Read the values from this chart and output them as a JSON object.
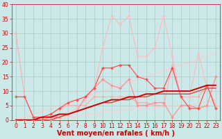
{
  "xlabel": "Vent moyen/en rafales ( km/h )",
  "background_color": "#cce8e8",
  "grid_color": "#aacccc",
  "xlim": [
    -0.5,
    23.5
  ],
  "ylim": [
    0,
    40
  ],
  "yticks": [
    0,
    5,
    10,
    15,
    20,
    25,
    30,
    35,
    40
  ],
  "xticks": [
    0,
    1,
    2,
    3,
    4,
    5,
    6,
    7,
    8,
    9,
    10,
    11,
    12,
    13,
    14,
    15,
    16,
    17,
    18,
    19,
    20,
    21,
    22,
    23
  ],
  "series": [
    {
      "x": [
        0,
        1,
        2,
        3,
        4,
        5,
        6,
        7,
        8,
        9,
        10,
        11,
        12,
        13,
        14,
        15,
        16,
        17,
        18,
        19,
        20,
        21,
        22,
        23
      ],
      "y": [
        30,
        8,
        1,
        1,
        2,
        4,
        5,
        5,
        5,
        8,
        8,
        8,
        8,
        8,
        6,
        6,
        5,
        5,
        19,
        8,
        8,
        8,
        12,
        5
      ],
      "color": "#ffaaaa",
      "linewidth": 0.8,
      "marker": "+",
      "markersize": 3,
      "zorder": 3
    },
    {
      "x": [
        0,
        1,
        2,
        3,
        4,
        5,
        6,
        7,
        8,
        9,
        10,
        11,
        12,
        13,
        14,
        15,
        16,
        17,
        18,
        19,
        20,
        21,
        22,
        23
      ],
      "y": [
        0,
        0,
        0,
        0,
        0,
        1,
        2,
        4,
        7,
        11,
        25,
        36,
        33,
        36,
        22,
        22,
        25,
        36,
        22,
        8,
        8,
        23,
        11,
        12
      ],
      "color": "#ffbbbb",
      "linewidth": 0.8,
      "marker": "+",
      "markersize": 3,
      "zorder": 3
    },
    {
      "x": [
        0,
        1,
        2,
        3,
        4,
        5,
        6,
        7,
        8,
        9,
        10,
        11,
        12,
        13,
        14,
        15,
        16,
        17,
        18,
        19,
        20,
        21,
        22,
        23
      ],
      "y": [
        8,
        8,
        1,
        1,
        2,
        4,
        6,
        7,
        8,
        11,
        18,
        18,
        19,
        19,
        15,
        14,
        11,
        11,
        18,
        8,
        4,
        4,
        12,
        4
      ],
      "color": "#ff4444",
      "linewidth": 0.8,
      "marker": "+",
      "markersize": 3,
      "zorder": 4
    },
    {
      "x": [
        0,
        1,
        2,
        3,
        4,
        5,
        6,
        7,
        8,
        9,
        10,
        11,
        12,
        13,
        14,
        15,
        16,
        17,
        18,
        19,
        20,
        21,
        22,
        23
      ],
      "y": [
        0,
        0,
        0,
        0,
        1,
        1,
        2,
        3,
        8,
        11,
        14,
        12,
        11,
        14,
        5,
        5,
        6,
        6,
        1,
        5,
        5,
        4,
        5,
        15
      ],
      "color": "#ff8888",
      "linewidth": 0.8,
      "marker": "+",
      "markersize": 3,
      "zorder": 3
    },
    {
      "x": [
        0,
        23
      ],
      "y": [
        0,
        23
      ],
      "color": "#ffcccc",
      "linewidth": 0.8,
      "marker": null,
      "markersize": 0,
      "zorder": 1
    },
    {
      "x": [
        0,
        1,
        2,
        3,
        4,
        5,
        6,
        7,
        8,
        9,
        10,
        11,
        12,
        13,
        14,
        15,
        16,
        17,
        18,
        19,
        20,
        21,
        22,
        23
      ],
      "y": [
        0,
        0,
        0,
        1,
        1,
        2,
        2,
        3,
        4,
        5,
        6,
        7,
        7,
        8,
        8,
        9,
        9,
        10,
        10,
        10,
        10,
        11,
        12,
        12
      ],
      "color": "#cc0000",
      "linewidth": 1.4,
      "marker": null,
      "markersize": 0,
      "zorder": 5
    },
    {
      "x": [
        0,
        1,
        2,
        3,
        4,
        5,
        6,
        7,
        8,
        9,
        10,
        11,
        12,
        13,
        14,
        15,
        16,
        17,
        18,
        19,
        20,
        21,
        22,
        23
      ],
      "y": [
        0,
        0,
        0,
        0,
        0,
        1,
        2,
        3,
        4,
        5,
        6,
        6,
        7,
        7,
        8,
        8,
        9,
        9,
        9,
        9,
        9,
        10,
        11,
        11
      ],
      "color": "#dd4444",
      "linewidth": 1.0,
      "marker": null,
      "markersize": 0,
      "zorder": 4
    },
    {
      "x": [
        0,
        1,
        2,
        3,
        4,
        5,
        6,
        7,
        8,
        9,
        10,
        11,
        12,
        13,
        14,
        15,
        16,
        17,
        18,
        19,
        20,
        21,
        22,
        23
      ],
      "y": [
        0,
        0,
        0,
        0,
        0,
        0,
        1,
        1,
        2,
        2,
        3,
        3,
        3,
        4,
        4,
        4,
        4,
        5,
        5,
        5,
        5,
        6,
        6,
        7
      ],
      "color": "#ffcccc",
      "linewidth": 0.8,
      "marker": null,
      "markersize": 0,
      "zorder": 2
    }
  ],
  "xlabel_fontsize": 7,
  "tick_fontsize": 5.5
}
